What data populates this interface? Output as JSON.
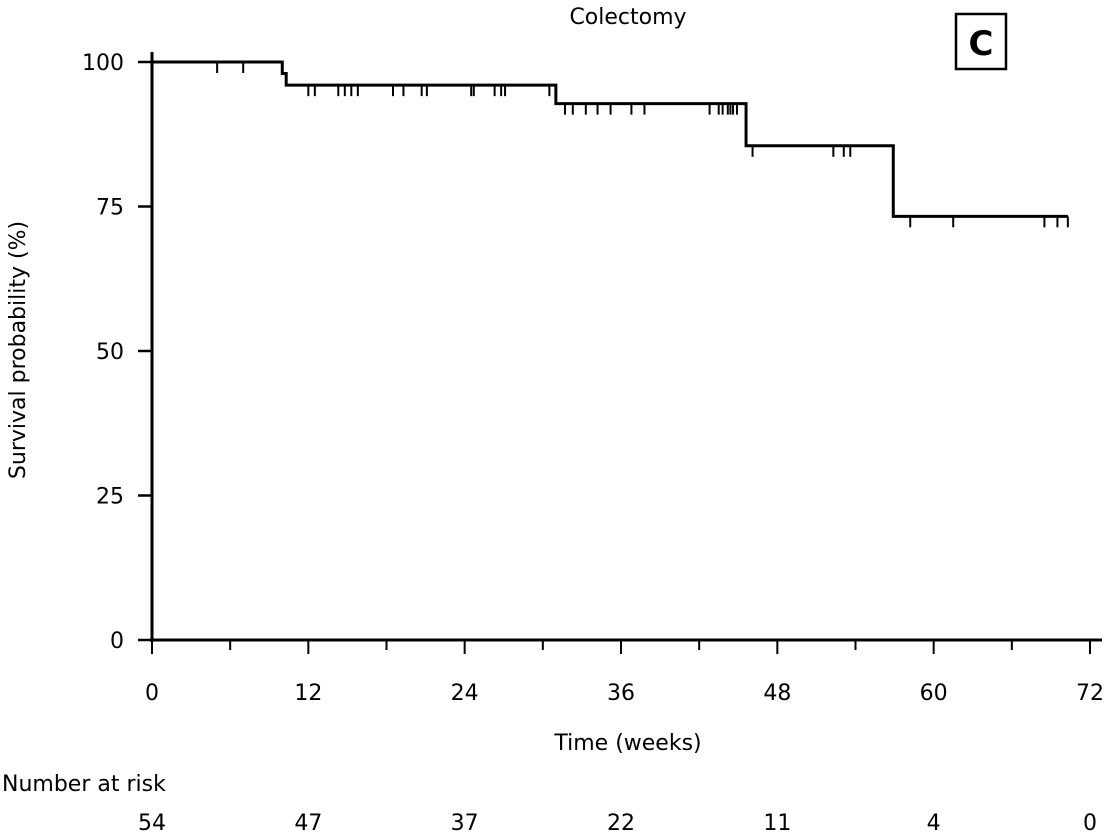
{
  "chart_data": {
    "type": "line",
    "title": "Colectomy",
    "panel_label": "C",
    "xlabel": "Time (weeks)",
    "ylabel": "Survival probability (%)",
    "xlim": [
      0,
      72
    ],
    "ylim": [
      0,
      100
    ],
    "x_ticks": [
      0,
      12,
      24,
      36,
      48,
      60,
      72
    ],
    "y_ticks": [
      0,
      25,
      50,
      75,
      100
    ],
    "x_minor_step": 6,
    "grid": false,
    "series": [
      {
        "steps": [
          {
            "x": 0,
            "y": 100
          },
          {
            "x": 10,
            "y": 98
          },
          {
            "x": 10.3,
            "y": 96
          },
          {
            "x": 31,
            "y": 92.8
          },
          {
            "x": 45.6,
            "y": 85.5
          },
          {
            "x": 56.9,
            "y": 73.3
          },
          {
            "x": 70.3,
            "y": 73.3
          }
        ],
        "censored": [
          5,
          7,
          12,
          12.5,
          14.3,
          14.8,
          15.3,
          15.8,
          18.5,
          19.3,
          20.7,
          21.1,
          24.5,
          24.7,
          26.3,
          26.8,
          27.1,
          30.5,
          31.7,
          32.3,
          33.3,
          34.2,
          35.2,
          36.8,
          37.8,
          42.8,
          43.5,
          43.8,
          44.2,
          44.4,
          44.6,
          44.9,
          46.1,
          52.3,
          53.1,
          53.6,
          58.2,
          61.5,
          68.5,
          69.5,
          70.3
        ]
      }
    ],
    "risk_table": {
      "label": "Number at risk",
      "values": [
        "54",
        "47",
        "37",
        "22",
        "11",
        "4",
        "0"
      ]
    }
  }
}
